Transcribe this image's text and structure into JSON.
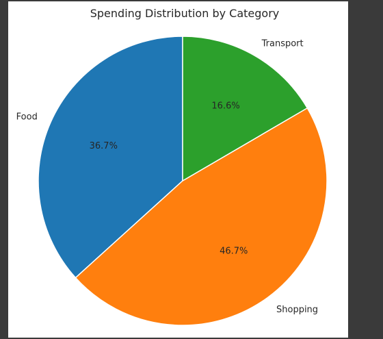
{
  "chart_data": {
    "type": "pie",
    "title": "Spending Distribution by Category",
    "categories": [
      "Food",
      "Shopping",
      "Transport"
    ],
    "values": [
      36.7,
      46.7,
      16.6
    ],
    "percent_labels": [
      "36.7%",
      "46.7%",
      "16.6%"
    ],
    "colors": [
      "#1f77b4",
      "#ff7f0e",
      "#2ca02c"
    ],
    "start_angle_deg": 90,
    "direction": "counterclockwise"
  }
}
